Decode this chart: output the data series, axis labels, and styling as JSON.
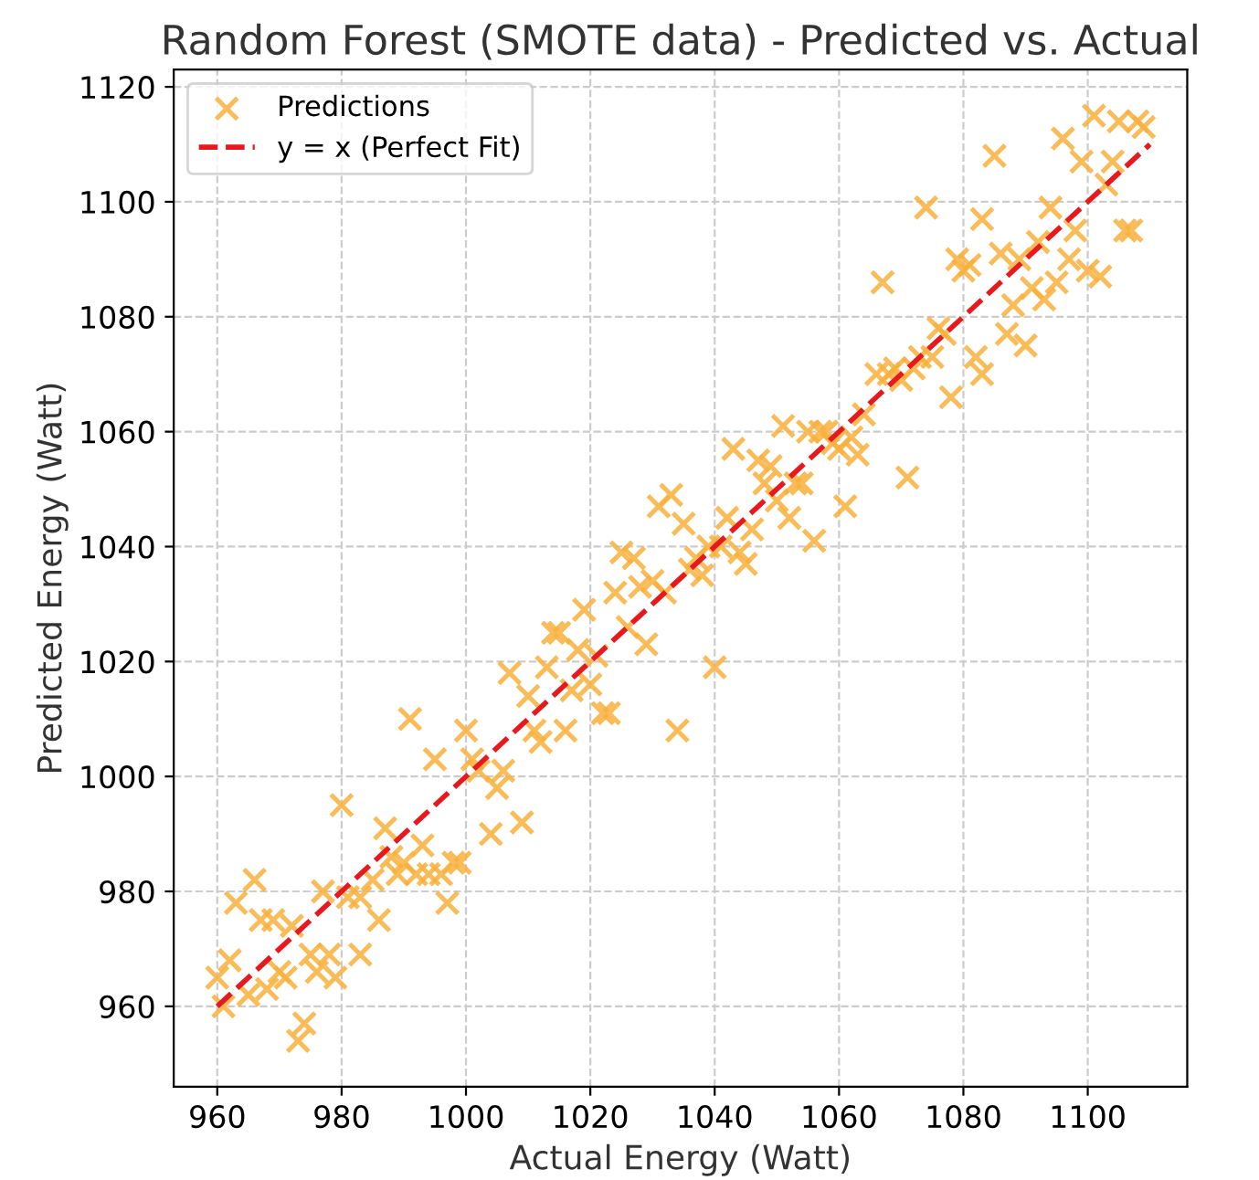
{
  "chart_data": {
    "type": "scatter",
    "title": "Random Forest (SMOTE data) - Predicted vs. Actual",
    "xlabel": "Actual Energy (Watt)",
    "ylabel": "Predicted Energy (Watt)",
    "xlim": [
      953,
      1116
    ],
    "ylim": [
      946,
      1123
    ],
    "xticks": [
      960,
      980,
      1000,
      1020,
      1040,
      1060,
      1080,
      1100
    ],
    "yticks": [
      960,
      980,
      1000,
      1020,
      1040,
      1060,
      1080,
      1100,
      1120
    ],
    "grid": true,
    "legend": "top left",
    "series": [
      {
        "name": "Predictions",
        "marker": "cross",
        "color": "#f8b03c",
        "x": [
          960,
          961,
          962,
          963,
          965,
          966,
          967,
          968,
          969,
          970,
          971,
          972,
          973,
          974,
          975,
          976,
          977,
          978,
          979,
          980,
          981,
          983,
          983,
          985,
          986,
          987,
          988,
          989,
          990,
          991,
          992,
          993,
          994,
          995,
          996,
          997,
          998,
          999,
          1000,
          1001,
          1002,
          1004,
          1005,
          1006,
          1007,
          1009,
          1010,
          1011,
          1012,
          1013,
          1014,
          1015,
          1016,
          1017,
          1018,
          1019,
          1020,
          1021,
          1022,
          1023,
          1024,
          1025,
          1026,
          1027,
          1028,
          1029,
          1030,
          1031,
          1032,
          1033,
          1034,
          1035,
          1036,
          1037,
          1038,
          1039,
          1040,
          1041,
          1042,
          1043,
          1044,
          1045,
          1046,
          1047,
          1048,
          1049,
          1050,
          1051,
          1052,
          1053,
          1054,
          1055,
          1056,
          1057,
          1058,
          1059,
          1060,
          1061,
          1062,
          1063,
          1064,
          1066,
          1067,
          1068,
          1069,
          1070,
          1071,
          1072,
          1073,
          1074,
          1075,
          1076,
          1077,
          1078,
          1079,
          1080,
          1081,
          1082,
          1083,
          1083,
          1085,
          1086,
          1087,
          1088,
          1089,
          1090,
          1091,
          1092,
          1093,
          1094,
          1095,
          1096,
          1097,
          1098,
          1099,
          1100,
          1101,
          1102,
          1103,
          1104,
          1105,
          1106,
          1107,
          1108,
          1109
        ],
        "values": [
          965,
          960,
          968,
          978,
          962,
          982,
          975,
          963,
          975,
          966,
          965,
          974,
          954,
          957,
          969,
          966,
          980,
          969,
          965,
          995,
          979,
          969,
          979,
          982,
          975,
          991,
          986,
          983,
          985,
          1010,
          983,
          988,
          983,
          1003,
          983,
          978,
          985,
          985,
          1008,
          1003,
          1001,
          990,
          998,
          1001,
          1018,
          992,
          1014,
          1008,
          1006,
          1019,
          1025,
          1025,
          1008,
          1015,
          1022,
          1029,
          1016,
          1021,
          1011,
          1011,
          1032,
          1039,
          1026,
          1038,
          1033,
          1023,
          1034,
          1047,
          1032,
          1049,
          1008,
          1044,
          1036,
          1038,
          1035,
          1040,
          1019,
          1040,
          1045,
          1057,
          1039,
          1037,
          1043,
          1055,
          1051,
          1054,
          1048,
          1061,
          1045,
          1051,
          1051,
          1060,
          1041,
          1060,
          1060,
          1058,
          1057,
          1047,
          1059,
          1056,
          1063,
          1070,
          1086,
          1070,
          1071,
          1069,
          1052,
          1071,
          1073,
          1099,
          1073,
          1078,
          1077,
          1066,
          1090,
          1088,
          1089,
          1073,
          1070,
          1097,
          1108,
          1091,
          1077,
          1082,
          1090,
          1075,
          1085,
          1093,
          1083,
          1099,
          1086,
          1111,
          1090,
          1095,
          1107,
          1088,
          1115,
          1087,
          1103,
          1107,
          1114,
          1095,
          1095,
          1114,
          1113
        ]
      },
      {
        "name": "y = x (Perfect Fit)",
        "type": "line",
        "line_style": "dashed",
        "marker": "none",
        "color": "#e8191e",
        "x": [
          960,
          1110
        ],
        "values": [
          960,
          1110
        ]
      }
    ]
  }
}
